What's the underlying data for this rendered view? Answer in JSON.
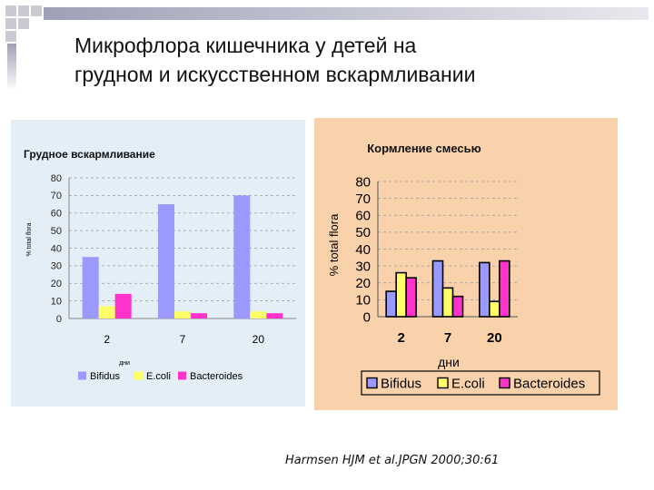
{
  "slide": {
    "title_line1": "Микрофлора кишечника у детей на",
    "title_line2": "грудном и искусственном вскармливании",
    "citation": "Harmsen HJM et al.JPGN 2000;30:61"
  },
  "chart_data": [
    {
      "type": "bar",
      "title": "Грудное вскармливание",
      "xlabel": "дни",
      "ylabel": "% total flora",
      "categories": [
        "2",
        "7",
        "20"
      ],
      "ylim": [
        0,
        80
      ],
      "yticks": [
        "0",
        "10",
        "20",
        "30",
        "40",
        "50",
        "60",
        "70",
        "80"
      ],
      "grid": "dashed horizontal",
      "legend_position": "bottom",
      "series": [
        {
          "name": "Bifidus",
          "color": "#9999ff",
          "values": [
            35,
            65,
            70
          ]
        },
        {
          "name": "E.coli",
          "color": "#ffff66",
          "values": [
            7,
            4,
            4
          ]
        },
        {
          "name": "Bacteroides",
          "color": "#ff33cc",
          "values": [
            14,
            3,
            3
          ]
        }
      ]
    },
    {
      "type": "bar",
      "title": "Кормление смесью",
      "xlabel": "дни",
      "ylabel": "% total flora",
      "categories": [
        "2",
        "7",
        "20"
      ],
      "ylim": [
        0,
        80
      ],
      "yticks": [
        "0",
        "10",
        "20",
        "30",
        "40",
        "50",
        "60",
        "70",
        "80"
      ],
      "grid": "dashed horizontal",
      "legend_position": "bottom",
      "series": [
        {
          "name": "Bifidus",
          "color": "#9999ff",
          "values": [
            15,
            33,
            32
          ]
        },
        {
          "name": "E.coli",
          "color": "#ffff66",
          "values": [
            26,
            17,
            9
          ]
        },
        {
          "name": "Bacteroides",
          "color": "#ff33cc",
          "values": [
            23,
            12,
            33
          ]
        }
      ]
    }
  ]
}
